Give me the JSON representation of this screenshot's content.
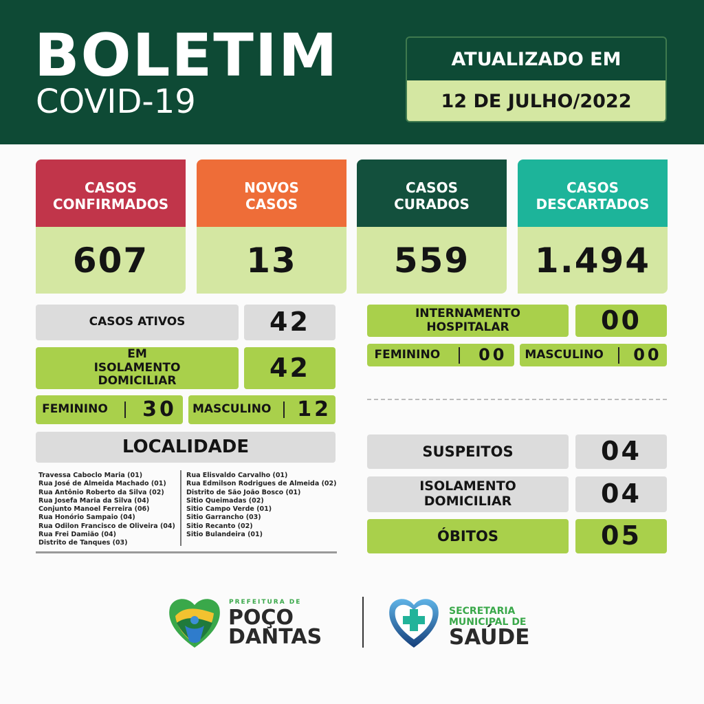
{
  "header": {
    "title": "BOLETIM",
    "subtitle": "COVID-19",
    "updated_label": "ATUALIZADO EM",
    "updated_date": "12 DE JULHO/2022"
  },
  "colors": {
    "header": "#0e4a35",
    "confirmados": "#c1354a",
    "novos": "#ee6d38",
    "curados": "#13503d",
    "descartados": "#1db49a",
    "light_green": "#d4e7a2",
    "lime": "#a9d04b",
    "gray": "#dcdcdc"
  },
  "cards": [
    {
      "label": "CASOS CONFIRMADOS",
      "value": "607"
    },
    {
      "label": "NOVOS CASOS",
      "value": "13"
    },
    {
      "label": "CASOS CURADOS",
      "value": "559"
    },
    {
      "label": "CASOS DESCARTADOS",
      "value": "1.494"
    }
  ],
  "ativos": {
    "label": "CASOS ATIVOS",
    "value": "42"
  },
  "isolamento": {
    "label": "EM ISOLAMENTO DOMICILIAR",
    "value": "42",
    "feminino_label": "FEMININO",
    "feminino": "30",
    "masculino_label": "MASCULINO",
    "masculino": "12"
  },
  "localidade": {
    "title": "LOCALIDADE",
    "col1": [
      "Travessa Caboclo Maria (01)",
      "Rua José de Almeida Machado (01)",
      "Rua Antônio Roberto da Silva (02)",
      "Rua Josefa Maria da Silva (04)",
      "Conjunto Manoel Ferreira (06)",
      "Rua Honório Sampaio (04)",
      "Rua Odilon Francisco de Oliveira (04)",
      "Rua Frei Damião (04)",
      "Distrito de Tanques (03)"
    ],
    "col2": [
      "Rua Elisvaldo Carvalho (01)",
      "Rua Edmilson Rodrigues de Almeida (02)",
      "Distrito de São João Bosco (01)",
      "Sitio Queimadas (02)",
      "Sitio Campo Verde (01)",
      "Sitio Garrancho (03)",
      "Sitio Recanto (02)",
      "Sitio Bulandeira (01)"
    ]
  },
  "internamento": {
    "label": "INTERNAMENTO HOSPITALAR",
    "value": "00",
    "feminino_label": "FEMININO",
    "feminino": "00",
    "masculino_label": "MASCULINO",
    "masculino": "00"
  },
  "suspeitos": {
    "label": "SUSPEITOS",
    "value": "04"
  },
  "isolamento2": {
    "label": "ISOLAMENTO DOMICILIAR",
    "value": "04"
  },
  "obitos": {
    "label": "ÓBITOS",
    "value": "05"
  },
  "logos": {
    "prefeitura_small": "PREFEITURA DE",
    "prefeitura_name1": "POÇO",
    "prefeitura_name2": "DANTAS",
    "secretaria_small1": "SECRETARIA",
    "secretaria_small2": "MUNICIPAL DE",
    "secretaria_name": "SAÚDE"
  }
}
